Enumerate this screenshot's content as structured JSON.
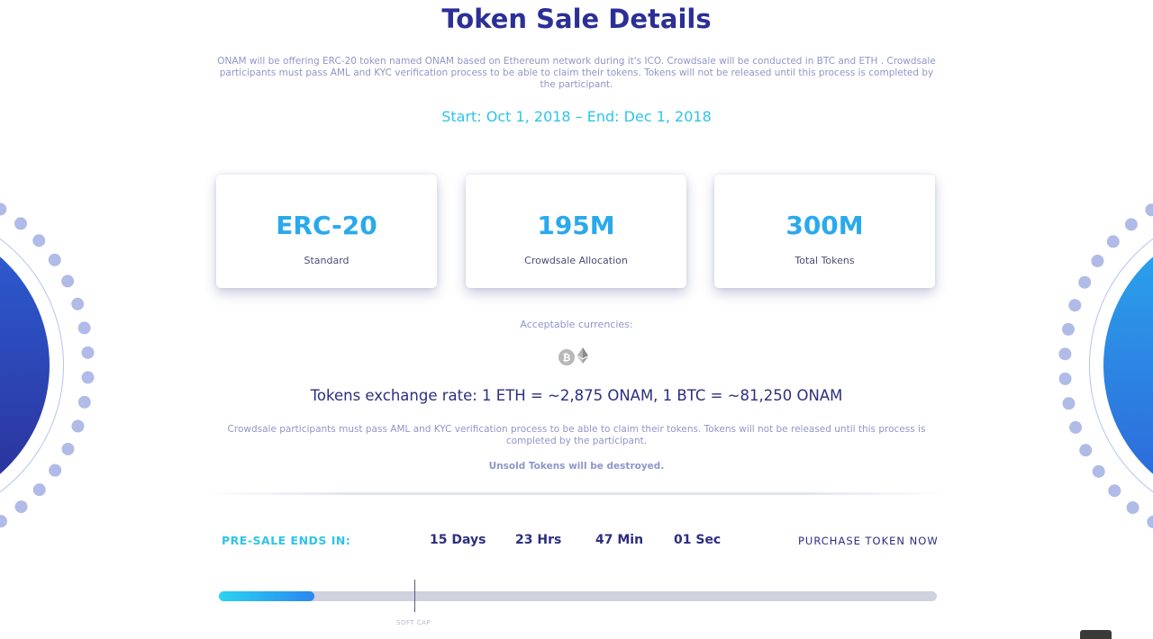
{
  "title": "Token Sale Details",
  "intro": "ONAM will be offering ERC-20 token named ONAM based on Ethereum network during it's ICO. Crowdsale will be conducted in BTC and ETH . Crowdsale participants must pass AML and KYC verification process to be able to claim their tokens. Tokens will not be released until this process is completed by the participant.",
  "dates": "Start: Oct 1, 2018 – End: Dec 1, 2018",
  "cards": [
    {
      "value": "ERC-20",
      "label": "Standard"
    },
    {
      "value": "195M",
      "label": "Crowdsale Allocation"
    },
    {
      "value": "300M",
      "label": "Total Tokens"
    }
  ],
  "currencies": {
    "label": "Acceptable currencies:",
    "icons": [
      "bitcoin-icon",
      "ethereum-icon"
    ],
    "btc_glyph": "₿",
    "eth_glyph": "◆"
  },
  "exchange_rate": "Tokens exchange rate: 1 ETH = ~2,875 ONAM, 1 BTC = ~81,250 ONAM",
  "notice": "Crowdsale participants must pass AML and KYC verification process to be able to claim their tokens. Tokens will not be released until this process is completed by the participant.",
  "unsold_notice": "Unsold Tokens will be destroyed.",
  "countdown": {
    "label": "PRE-SALE ENDS IN:",
    "days": "15 Days",
    "hours": "23 Hrs",
    "minutes": "47 Min",
    "seconds": "01 Sec"
  },
  "purchase_label": "PURCHASE TOKEN NOW",
  "progress": {
    "fraction": 0.133,
    "soft_cap_fraction": 0.272,
    "soft_cap_label": "SOFT CAP"
  },
  "colors": {
    "heading": "#2b2f96",
    "accent_cyan": "#2ec4ea",
    "accent_blue": "#2aa9ec",
    "muted_text": "#8f96c8"
  }
}
